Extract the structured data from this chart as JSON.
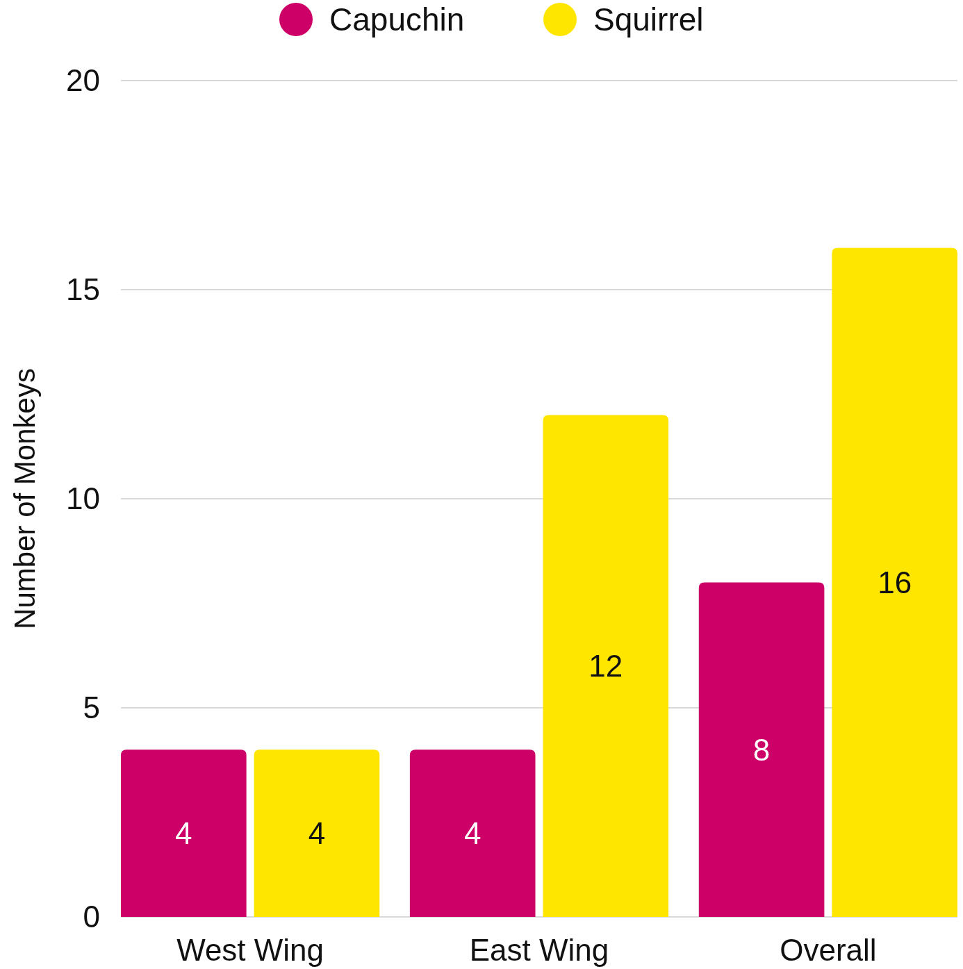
{
  "chart_data": {
    "type": "bar",
    "ylabel": "Number of Monkeys",
    "categories": [
      "West Wing",
      "East Wing",
      "Overall"
    ],
    "series": [
      {
        "name": "Capuchin",
        "color": "#cc0066",
        "values": [
          4,
          4,
          8
        ]
      },
      {
        "name": "Squirrel",
        "color": "#ffe600",
        "values": [
          4,
          12,
          16
        ]
      }
    ],
    "ylim": [
      0,
      20
    ],
    "yticks": [
      0,
      5,
      10,
      15,
      20
    ],
    "grid": "y",
    "legend": "top",
    "data_labels": true
  }
}
